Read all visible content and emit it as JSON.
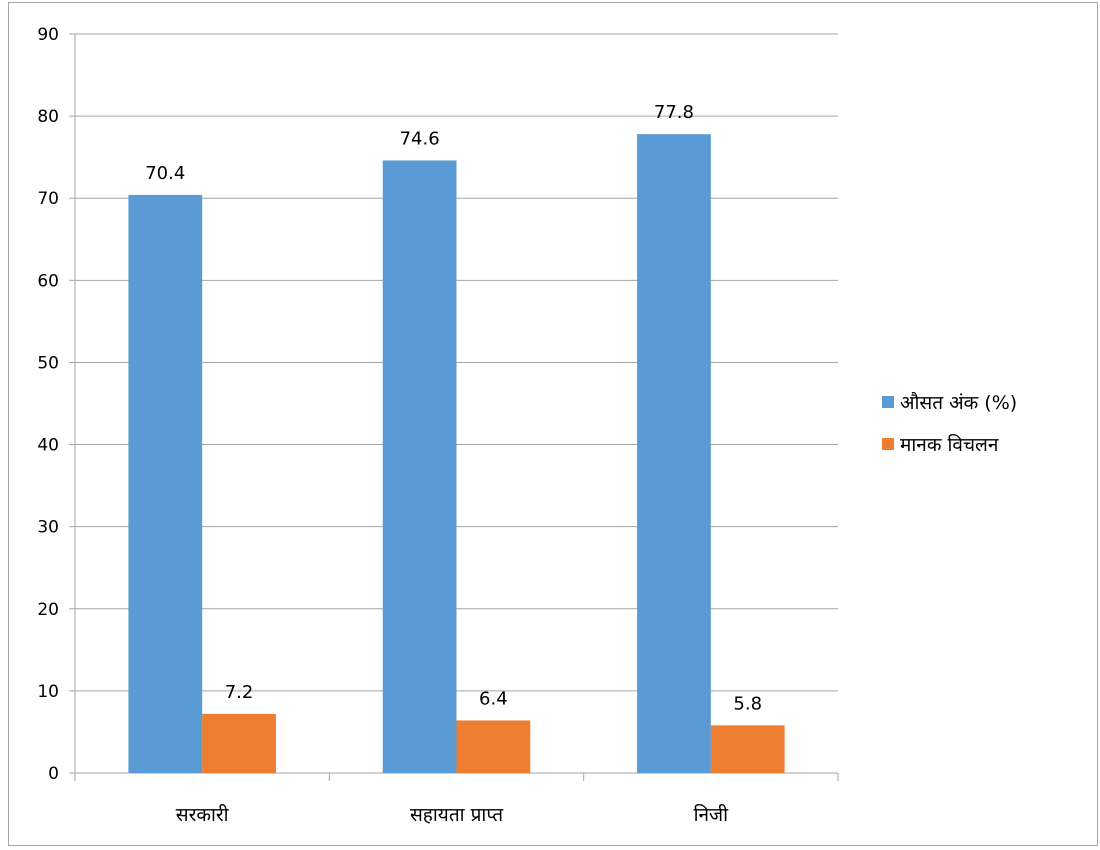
{
  "chart_data": {
    "type": "bar",
    "categories": [
      "सरकारी",
      "सहायता प्राप्त",
      "निजी"
    ],
    "series": [
      {
        "name": "औसत अंक (%)",
        "values": [
          70.4,
          74.6,
          77.8
        ],
        "color": "#5b9bd5"
      },
      {
        "name": "मानक विचलन",
        "values": [
          7.2,
          6.4,
          5.8
        ],
        "color": "#ed7d31"
      }
    ],
    "data_labels": [
      [
        "70.4",
        "74.6",
        "77.8"
      ],
      [
        "7.2",
        "6.4",
        "5.8"
      ]
    ],
    "ylim": [
      0,
      90
    ],
    "yticks": [
      0,
      10,
      20,
      30,
      40,
      50,
      60,
      70,
      80,
      90
    ],
    "grid": true,
    "legend_position": "right",
    "gridline_color": "#a6a6a6"
  }
}
